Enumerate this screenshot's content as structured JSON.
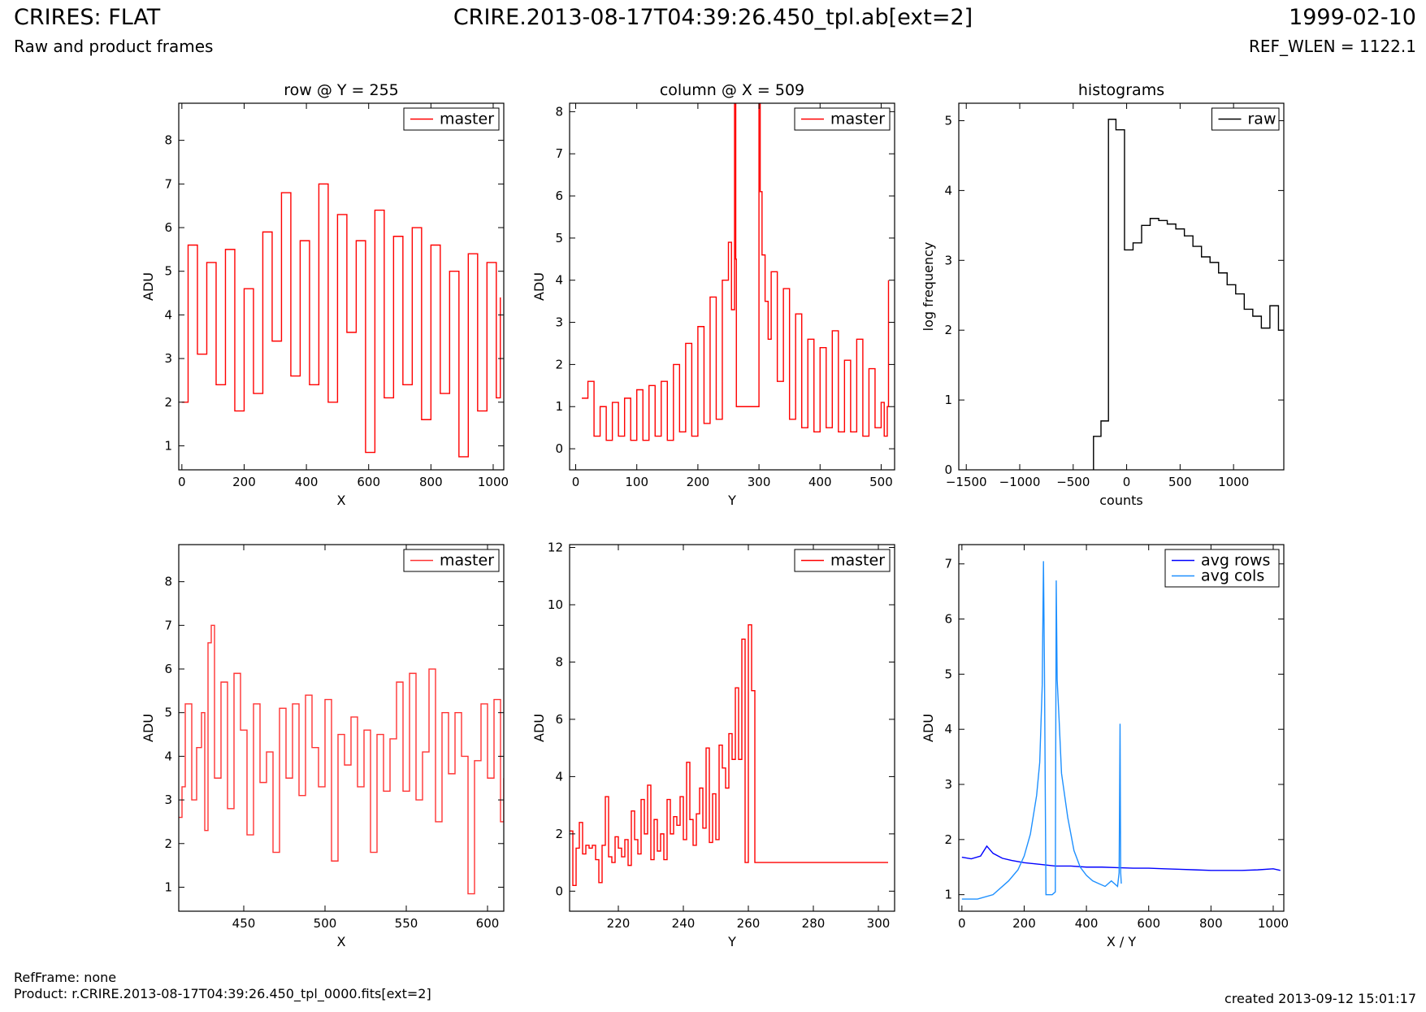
{
  "header": {
    "title_left": "CRIRES: FLAT",
    "subtitle_left": "Raw and product frames",
    "title_center": "CRIRE.2013-08-17T04:39:26.450_tpl.ab[ext=2]",
    "title_right": "1999-02-10",
    "subtitle_right": "REF_WLEN = 1122.1"
  },
  "footer": {
    "refframe": "RefFrame: none",
    "product": "Product: r.CRIRE.2013-08-17T04:39:26.450_tpl_0000.fits[ext=2]",
    "created": "created 2013-09-12 15:01:17"
  },
  "chart_data": [
    {
      "id": "p1",
      "type": "line",
      "title": "row @ Y = 255",
      "xlabel": "X",
      "ylabel": "ADU",
      "xlim": [
        -10,
        1034
      ],
      "ylim": [
        0.45,
        8.85
      ],
      "xticks": [
        0,
        200,
        400,
        600,
        800,
        1000
      ],
      "yticks": [
        1,
        2,
        3,
        4,
        5,
        6,
        7,
        8
      ],
      "legend": "top-right",
      "series": [
        {
          "name": "master",
          "color": "#ff0000",
          "draw": "steps",
          "x": [
            0,
            20,
            50,
            80,
            110,
            140,
            170,
            200,
            230,
            260,
            290,
            320,
            350,
            380,
            410,
            440,
            470,
            500,
            530,
            560,
            590,
            620,
            650,
            680,
            710,
            740,
            770,
            800,
            830,
            860,
            890,
            920,
            950,
            980,
            1010,
            1023
          ],
          "values": [
            2.0,
            5.6,
            3.1,
            5.2,
            2.4,
            5.5,
            1.8,
            4.6,
            2.2,
            5.9,
            3.4,
            6.8,
            2.6,
            5.7,
            2.4,
            7.0,
            2.0,
            6.3,
            3.6,
            5.7,
            0.85,
            6.4,
            2.1,
            5.8,
            2.4,
            6.0,
            1.6,
            5.6,
            2.2,
            5.0,
            0.75,
            5.4,
            1.8,
            5.2,
            2.1,
            4.4
          ]
        }
      ]
    },
    {
      "id": "p2",
      "type": "line",
      "title": "column @ X = 509",
      "xlabel": "Y",
      "ylabel": "ADU",
      "xlim": [
        -10,
        522
      ],
      "ylim": [
        -0.5,
        8.2
      ],
      "xticks": [
        0,
        100,
        200,
        300,
        400,
        500
      ],
      "yticks": [
        0,
        1,
        2,
        3,
        4,
        5,
        6,
        7,
        8
      ],
      "legend": "top-right",
      "series": [
        {
          "name": "master",
          "color": "#ff0000",
          "draw": "steps",
          "x": [
            10,
            20,
            30,
            40,
            50,
            60,
            70,
            80,
            90,
            100,
            110,
            120,
            130,
            140,
            150,
            160,
            170,
            180,
            190,
            200,
            210,
            220,
            230,
            240,
            250,
            255,
            260,
            262,
            263,
            300,
            302,
            305,
            310,
            315,
            320,
            330,
            340,
            350,
            360,
            370,
            380,
            390,
            400,
            410,
            420,
            430,
            440,
            450,
            460,
            470,
            480,
            490,
            500,
            505,
            510,
            512
          ],
          "values": [
            1.2,
            1.6,
            0.3,
            1.0,
            0.2,
            1.1,
            0.3,
            1.2,
            0.2,
            1.4,
            0.2,
            1.5,
            0.3,
            1.6,
            0.2,
            2.0,
            0.4,
            2.5,
            0.3,
            2.9,
            0.6,
            3.6,
            0.7,
            4.0,
            4.9,
            3.3,
            8.2,
            4.5,
            1.0,
            8.2,
            6.1,
            4.6,
            3.5,
            2.6,
            4.2,
            1.6,
            3.8,
            0.7,
            3.2,
            0.5,
            2.6,
            0.4,
            2.4,
            0.5,
            2.8,
            0.4,
            2.1,
            0.4,
            2.6,
            0.3,
            1.9,
            0.5,
            1.1,
            0.3,
            1.0,
            4.0
          ]
        }
      ]
    },
    {
      "id": "p3",
      "type": "line",
      "title": "histograms",
      "xlabel": "counts",
      "ylabel": "log frequency",
      "xlim": [
        -1570,
        1470
      ],
      "ylim": [
        0,
        5.25
      ],
      "xticks": [
        -1500,
        -1000,
        -500,
        0,
        500,
        1000
      ],
      "yticks": [
        0,
        1,
        2,
        3,
        4,
        5
      ],
      "legend": "top-right",
      "series": [
        {
          "name": "raw",
          "color": "#000000",
          "draw": "hist",
          "edges": [
            -310,
            -240,
            -170,
            -100,
            -20,
            60,
            140,
            220,
            300,
            380,
            460,
            540,
            620,
            700,
            780,
            860,
            940,
            1020,
            1100,
            1180,
            1260,
            1340,
            1420,
            1500
          ],
          "values": [
            0.48,
            0.7,
            5.02,
            4.87,
            3.15,
            3.25,
            3.5,
            3.6,
            3.57,
            3.52,
            3.45,
            3.35,
            3.2,
            3.05,
            2.97,
            2.82,
            2.65,
            2.52,
            2.3,
            2.2,
            2.03,
            2.35,
            2.0
          ]
        }
      ]
    },
    {
      "id": "p4",
      "type": "line",
      "title": "",
      "xlabel": "X",
      "ylabel": "ADU",
      "xlim": [
        410,
        610
      ],
      "ylim": [
        0.45,
        8.85
      ],
      "xticks": [
        450,
        500,
        550,
        600
      ],
      "yticks": [
        1,
        2,
        3,
        4,
        5,
        6,
        7,
        8
      ],
      "legend": "top-right",
      "series": [
        {
          "name": "master",
          "color": "#ff3333",
          "draw": "steps",
          "x": [
            410,
            412,
            414,
            418,
            421,
            424,
            426,
            428,
            430,
            432,
            436,
            440,
            444,
            448,
            452,
            456,
            460,
            464,
            468,
            472,
            476,
            480,
            484,
            488,
            492,
            496,
            500,
            504,
            508,
            512,
            516,
            520,
            524,
            528,
            532,
            536,
            540,
            544,
            548,
            552,
            556,
            560,
            564,
            568,
            572,
            576,
            580,
            584,
            588,
            592,
            596,
            600,
            604,
            608,
            610
          ],
          "values": [
            2.6,
            3.3,
            5.2,
            3.0,
            4.2,
            5.0,
            2.3,
            6.6,
            7.0,
            3.5,
            5.7,
            2.8,
            5.9,
            4.6,
            2.2,
            5.2,
            3.4,
            4.1,
            1.8,
            5.1,
            3.5,
            5.2,
            3.1,
            5.4,
            4.2,
            3.3,
            5.3,
            1.6,
            4.5,
            3.8,
            4.9,
            3.3,
            4.6,
            1.8,
            4.5,
            3.2,
            4.4,
            5.7,
            3.2,
            5.9,
            3.0,
            4.1,
            6.0,
            2.5,
            5.0,
            3.6,
            5.0,
            4.0,
            0.85,
            3.9,
            5.2,
            3.5,
            5.3,
            2.5,
            3.5
          ]
        }
      ]
    },
    {
      "id": "p5",
      "type": "line",
      "title": "",
      "xlabel": "Y",
      "ylabel": "ADU",
      "xlim": [
        205,
        305
      ],
      "ylim": [
        -0.7,
        12.1
      ],
      "xticks": [
        220,
        240,
        260,
        280,
        300
      ],
      "yticks": [
        0,
        2,
        4,
        6,
        8,
        10,
        12
      ],
      "legend": "top-right",
      "series": [
        {
          "name": "master",
          "color": "#ff0000",
          "draw": "steps",
          "x": [
            205,
            206,
            207,
            208,
            209,
            210,
            211,
            212,
            213,
            214,
            215,
            216,
            217,
            218,
            219,
            220,
            221,
            222,
            223,
            224,
            225,
            226,
            227,
            228,
            229,
            230,
            231,
            232,
            233,
            234,
            235,
            236,
            237,
            238,
            239,
            240,
            241,
            242,
            243,
            244,
            245,
            246,
            247,
            248,
            249,
            250,
            251,
            252,
            253,
            254,
            255,
            256,
            257,
            258,
            259,
            260,
            261,
            262,
            263,
            300,
            301,
            302,
            303
          ],
          "values": [
            2.1,
            0.2,
            1.5,
            2.4,
            1.3,
            1.6,
            1.5,
            1.6,
            1.1,
            0.3,
            1.6,
            3.3,
            1.2,
            1.0,
            1.9,
            1.5,
            1.2,
            1.8,
            0.9,
            2.8,
            1.8,
            1.3,
            3.2,
            2.0,
            3.7,
            1.1,
            2.5,
            1.4,
            2.0,
            1.1,
            3.2,
            2.0,
            2.6,
            2.3,
            3.3,
            1.8,
            4.5,
            2.5,
            1.6,
            2.7,
            3.6,
            2.2,
            5.0,
            1.7,
            3.4,
            1.8,
            5.1,
            4.3,
            3.6,
            5.5,
            4.6,
            7.1,
            4.6,
            8.8,
            1.0,
            9.3,
            7.0,
            1.0,
            1.0,
            1.0,
            1.0,
            1.0,
            1.0
          ]
        }
      ]
    },
    {
      "id": "p6",
      "type": "line",
      "title": "",
      "xlabel": "X / Y",
      "ylabel": "ADU",
      "xlim": [
        -10,
        1034
      ],
      "ylim": [
        0.7,
        7.35
      ],
      "xticks": [
        0,
        200,
        400,
        600,
        800,
        1000
      ],
      "yticks": [
        1,
        2,
        3,
        4,
        5,
        6,
        7
      ],
      "legend": "top-right",
      "series": [
        {
          "name": "avg rows",
          "color": "#0000ff",
          "draw": "line",
          "x": [
            0,
            30,
            60,
            80,
            100,
            130,
            160,
            200,
            250,
            300,
            350,
            400,
            450,
            500,
            550,
            600,
            650,
            700,
            750,
            800,
            850,
            900,
            950,
            1000,
            1023
          ],
          "values": [
            1.68,
            1.65,
            1.7,
            1.88,
            1.75,
            1.66,
            1.62,
            1.58,
            1.55,
            1.52,
            1.52,
            1.5,
            1.5,
            1.49,
            1.48,
            1.48,
            1.47,
            1.46,
            1.45,
            1.44,
            1.44,
            1.44,
            1.45,
            1.47,
            1.44
          ]
        },
        {
          "name": "avg cols",
          "color": "#1e90ff",
          "draw": "line",
          "x": [
            0,
            50,
            100,
            150,
            180,
            200,
            220,
            240,
            250,
            258,
            262,
            265,
            270,
            290,
            300,
            303,
            306,
            312,
            320,
            340,
            360,
            380,
            400,
            420,
            440,
            460,
            480,
            500,
            505,
            508,
            510,
            512
          ],
          "values": [
            0.92,
            0.92,
            1.0,
            1.25,
            1.45,
            1.7,
            2.1,
            2.8,
            3.4,
            4.8,
            7.05,
            5.2,
            1.0,
            1.0,
            1.05,
            6.7,
            4.9,
            4.2,
            3.2,
            2.4,
            1.8,
            1.5,
            1.35,
            1.25,
            1.2,
            1.15,
            1.25,
            1.15,
            1.4,
            4.1,
            1.4,
            1.2
          ]
        }
      ]
    }
  ]
}
